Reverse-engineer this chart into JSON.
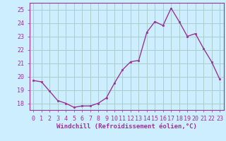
{
  "x": [
    0,
    1,
    2,
    3,
    4,
    5,
    6,
    7,
    8,
    9,
    10,
    11,
    12,
    13,
    14,
    15,
    16,
    17,
    18,
    19,
    20,
    21,
    22,
    23
  ],
  "y": [
    19.7,
    19.6,
    18.9,
    18.2,
    18.0,
    17.7,
    17.8,
    17.8,
    18.0,
    18.4,
    19.5,
    20.5,
    21.1,
    21.2,
    23.3,
    24.1,
    23.8,
    25.1,
    24.1,
    23.0,
    23.2,
    22.1,
    21.1,
    19.8
  ],
  "line_color": "#993399",
  "marker": "s",
  "marker_size": 2,
  "background_color": "#cceeff",
  "grid_color": "#aacccc",
  "xlabel": "Windchill (Refroidissement éolien,°C)",
  "ylabel": "",
  "ylim": [
    17.5,
    25.5
  ],
  "xlim": [
    -0.5,
    23.5
  ],
  "yticks": [
    18,
    19,
    20,
    21,
    22,
    23,
    24,
    25
  ],
  "xticks": [
    0,
    1,
    2,
    3,
    4,
    5,
    6,
    7,
    8,
    9,
    10,
    11,
    12,
    13,
    14,
    15,
    16,
    17,
    18,
    19,
    20,
    21,
    22,
    23
  ],
  "tick_color": "#993399",
  "xlabel_fontsize": 6.5,
  "tick_fontsize": 6,
  "line_width": 1.0,
  "spine_color": "#993399"
}
